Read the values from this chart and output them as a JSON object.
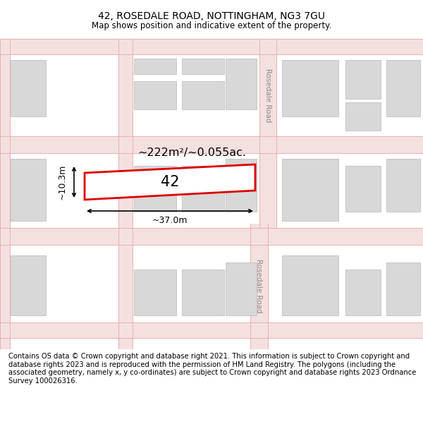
{
  "title_line1": "42, ROSEDALE ROAD, NOTTINGHAM, NG3 7GU",
  "title_line2": "Map shows position and indicative extent of the property.",
  "footer_text": "Contains OS data © Crown copyright and database right 2021. This information is subject to Crown copyright and database rights 2023 and is reproduced with the permission of HM Land Registry. The polygons (including the associated geometry, namely x, y co-ordinates) are subject to Crown copyright and database rights 2023 Ordnance Survey 100026316.",
  "map_bg": "#ffffff",
  "road_line_color": "#e8b0b0",
  "block_fill": "#d8d8d8",
  "block_edge": "#c0c0c0",
  "road_stripe_color": "#f5e0e0",
  "plot_fill": "#ffffff",
  "plot_edge": "#dd0000",
  "road_label_color": "#888888",
  "road_label": "Rosedale Road",
  "plot_number": "42",
  "area_label": "~222m²/~0.055ac.",
  "width_label": "~37.0m",
  "height_label": "~10.3m",
  "title_fontsize": 10,
  "subtitle_fontsize": 8.5,
  "footer_fontsize": 7.2
}
